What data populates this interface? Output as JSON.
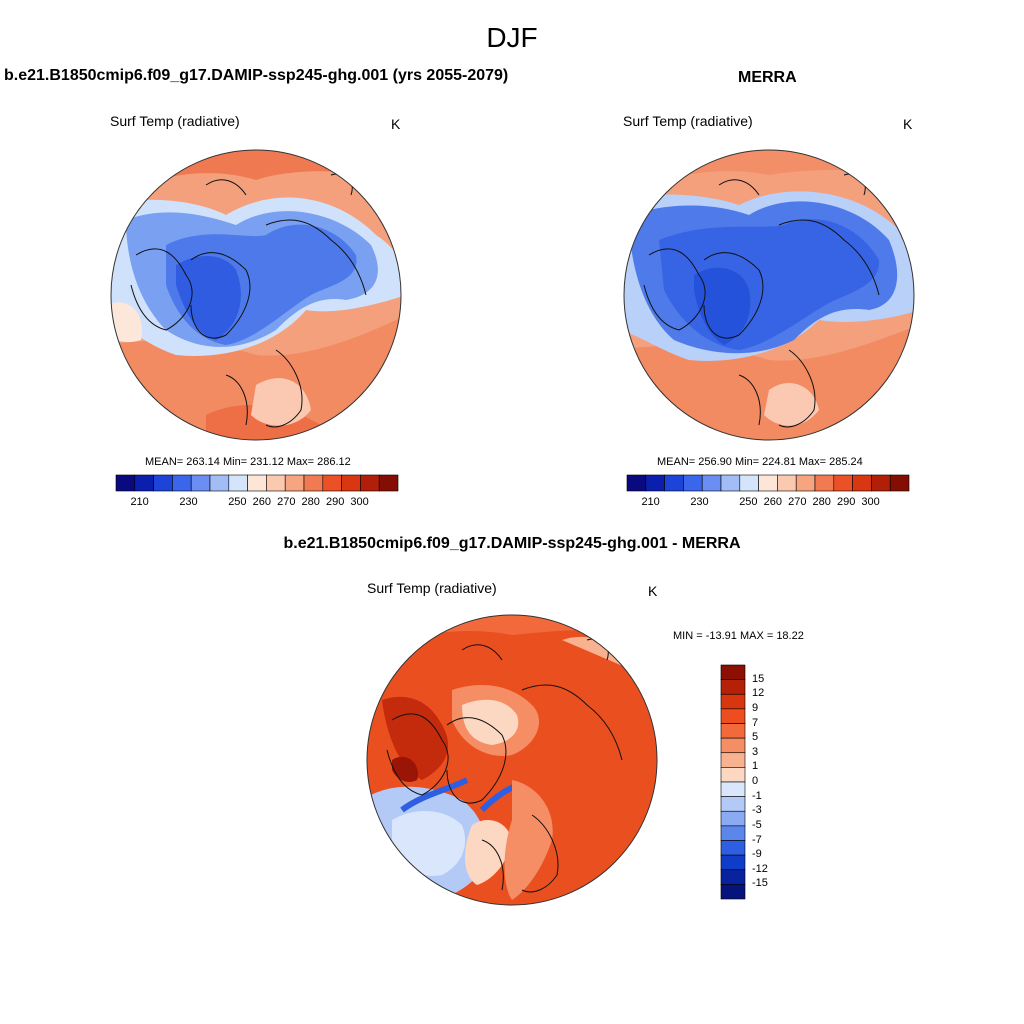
{
  "figure": {
    "title": "DJF"
  },
  "panels": [
    {
      "title": "b.e21.B1850cmip6.f09_g17.DAMIP-ssp245-ghg.001 (yrs 2055-2079)",
      "variable": "Surf Temp (radiative)",
      "units": "K",
      "stats": {
        "mean": "263.14",
        "min": "231.12",
        "max": "286.12"
      },
      "stats_text": "MEAN= 263.14  Min= 231.12  Max= 286.12"
    },
    {
      "title": "MERRA",
      "variable": "Surf Temp (radiative)",
      "units": "K",
      "stats": {
        "mean": "256.90",
        "min": "224.81",
        "max": "285.24"
      },
      "stats_text": "MEAN= 256.90  Min= 224.81  Max= 285.24"
    },
    {
      "title": "b.e21.B1850cmip6.f09_g17.DAMIP-ssp245-ghg.001 - MERRA",
      "variable": "Surf Temp (radiative)",
      "units": "K",
      "stats": {
        "min": "-13.91",
        "max": "18.22"
      },
      "stats_text": "MIN = -13.91 MAX =  18.22"
    }
  ],
  "abs_colorbar": {
    "tick_labels": [
      "210",
      "230",
      "250",
      "260",
      "270",
      "280",
      "290",
      "300"
    ],
    "colors": [
      "#0a0a80",
      "#0b1fae",
      "#1d44d8",
      "#3a66ec",
      "#6a8ef2",
      "#a2bdf6",
      "#d3e4fb",
      "#fde5d8",
      "#fbc8b0",
      "#f7a481",
      "#f27a52",
      "#ec5026",
      "#d83712",
      "#b21f08",
      "#840e04"
    ]
  },
  "diff_colorbar": {
    "tick_labels": [
      "15",
      "12",
      "9",
      "7",
      "5",
      "3",
      "1",
      "0",
      "-1",
      "-3",
      "-5",
      "-7",
      "-9",
      "-12",
      "-15"
    ],
    "colors": [
      "#8c0f04",
      "#b52008",
      "#d8360e",
      "#ee4d1f",
      "#f26a3c",
      "#f58d65",
      "#f9b290",
      "#fcd8c3",
      "#d9e6fb",
      "#b3caf7",
      "#8aabf2",
      "#5b86ec",
      "#2e5fe2",
      "#0f3cc8",
      "#09239e",
      "#06137a"
    ]
  }
}
